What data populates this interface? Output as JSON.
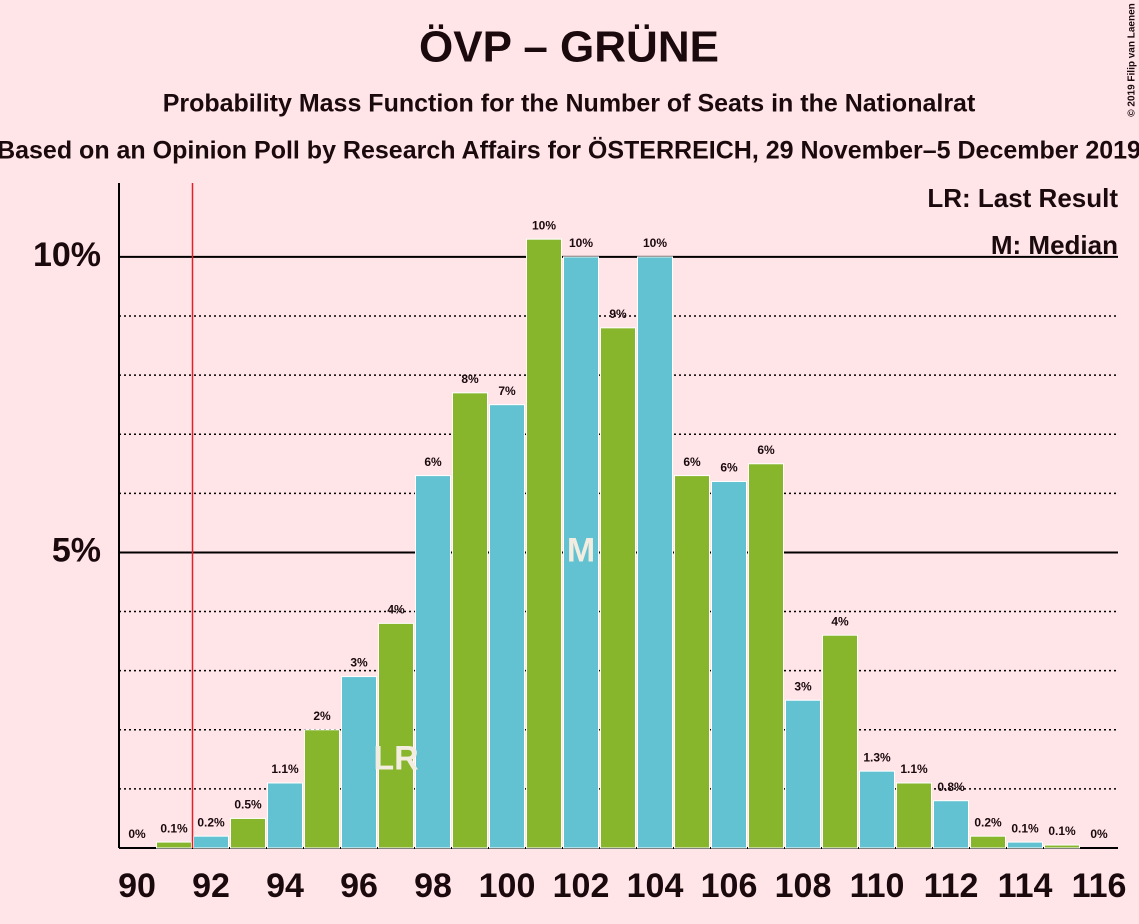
{
  "chart_data": {
    "type": "bar",
    "title": "ÖVP – GRÜNE",
    "subtitle": "Probability Mass Function for the Number of Seats in the Nationalrat",
    "subtitle2": "Based on an Opinion Poll by Research Affairs for ÖSTERREICH, 29 November–5 December 2019",
    "copyright": "© 2019 Filip van Laenen",
    "legend": [
      "LR: Last Result",
      "M: Median"
    ],
    "categories": [
      90,
      null,
      92,
      null,
      94,
      null,
      96,
      null,
      98,
      null,
      100,
      null,
      102,
      null,
      104,
      null,
      106,
      null,
      108,
      null,
      110,
      null,
      112,
      null,
      114,
      null,
      116
    ],
    "values": [
      0,
      0.1,
      0.2,
      0.5,
      1.1,
      2.0,
      2.9,
      3.8,
      6.3,
      7.7,
      7.5,
      10.3,
      10.0,
      8.8,
      10.0,
      6.3,
      6.2,
      6.5,
      2.5,
      3.6,
      1.3,
      1.1,
      0.8,
      0.2,
      0.1,
      0.05,
      0
    ],
    "value_labels": [
      "0%",
      "0.1%",
      "0.2%",
      "0.5%",
      "1.1%",
      "2%",
      "3%",
      "4%",
      "6%",
      "8%",
      "7%",
      "10%",
      "10%",
      "9%",
      "10%",
      "6%",
      "6%",
      "6%",
      "3%",
      "4%",
      "1.3%",
      "1.1%",
      "0.8%",
      "0.2%",
      "0.1%",
      "0.1%",
      "0%"
    ],
    "colors": [
      "#63c2d1",
      "#87b52c"
    ],
    "markers": [
      {
        "index": 7,
        "label": "LR"
      },
      {
        "index": 12,
        "label": "M"
      }
    ],
    "majority_line": 91.5,
    "ylim": [
      0,
      11.25
    ],
    "yticks": [
      {
        "value": 5,
        "label": "5%"
      },
      {
        "value": 10,
        "label": "10%"
      }
    ],
    "minor_yticks": [
      1,
      2,
      3,
      4,
      6,
      7,
      8,
      9
    ]
  }
}
